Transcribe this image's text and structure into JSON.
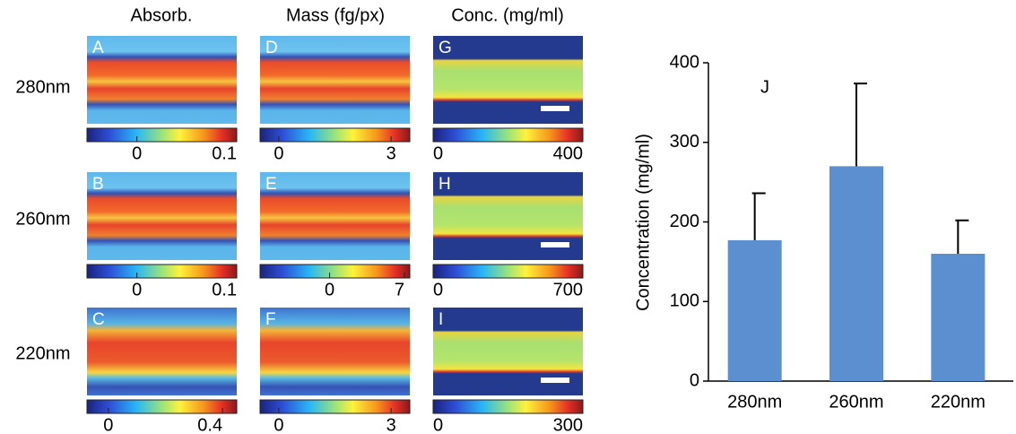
{
  "columns": [
    "Absorb.",
    "Mass (fg/px)",
    "Conc. (mg/ml)"
  ],
  "rows": [
    "280nm",
    "260nm",
    "220nm"
  ],
  "panels": [
    {
      "label": "A",
      "colorbar": {
        "lim": [
          -0.05,
          0.1
        ],
        "ticks": [
          0,
          0.1
        ]
      }
    },
    {
      "label": "D",
      "colorbar": {
        "lim": [
          -0.5,
          3.5
        ],
        "ticks": [
          0,
          3
        ]
      }
    },
    {
      "label": "G",
      "colorbar": {
        "lim": [
          0,
          400
        ],
        "ticks": [
          0,
          400
        ]
      }
    },
    {
      "label": "B",
      "colorbar": {
        "lim": [
          -0.05,
          0.1
        ],
        "ticks": [
          0,
          0.1
        ]
      }
    },
    {
      "label": "E",
      "colorbar": {
        "lim": [
          -6.5,
          7.5
        ],
        "ticks": [
          0,
          7
        ]
      }
    },
    {
      "label": "H",
      "colorbar": {
        "lim": [
          0,
          700
        ],
        "ticks": [
          0,
          700
        ]
      }
    },
    {
      "label": "C",
      "colorbar": {
        "lim": [
          -0.075,
          0.45
        ],
        "ticks": [
          0,
          0.4
        ]
      }
    },
    {
      "label": "F",
      "colorbar": {
        "lim": [
          -0.5,
          3.5
        ],
        "ticks": [
          0,
          3
        ]
      }
    },
    {
      "label": "I",
      "colorbar": {
        "lim": [
          0,
          300
        ],
        "ticks": [
          0,
          300
        ]
      }
    }
  ],
  "chart_data": {
    "type": "bar",
    "annotation": "J",
    "ylabel": "Concentration (mg/ml)",
    "categories": [
      "280nm",
      "260nm",
      "220nm"
    ],
    "values": [
      177,
      270,
      160
    ],
    "errors": [
      59,
      104,
      42
    ],
    "color": "#5b8fd0",
    "ylim": [
      0,
      400
    ],
    "yticks": [
      0,
      100,
      200,
      300,
      400
    ]
  }
}
